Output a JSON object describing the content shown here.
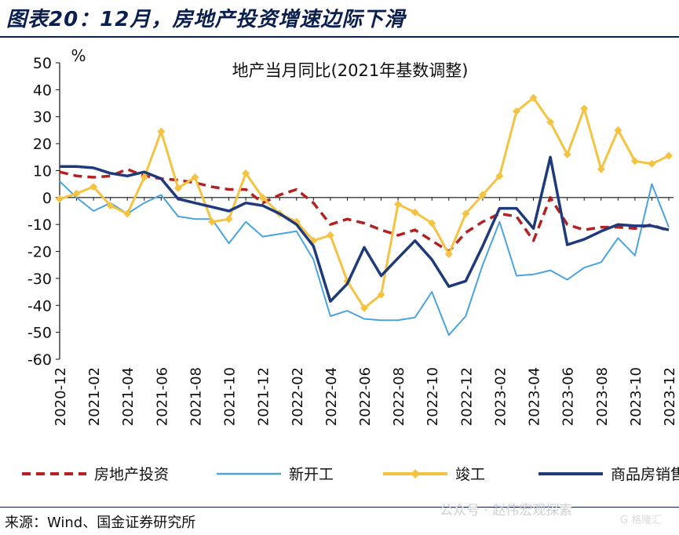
{
  "figure_title": "图表20：12月，房地产投资增速边际下滑",
  "source": "来源：Wind、国金证券研究所",
  "watermark": "公众号 · 赵伟宏观探索",
  "watermark_logo": "G 格隆汇",
  "chart_data": {
    "type": "line",
    "title": "地产当月同比(2021年基数调整)",
    "ylabel": "%",
    "ylim": [
      -60,
      50
    ],
    "yticks": [
      50,
      40,
      30,
      20,
      10,
      0,
      -10,
      -20,
      -30,
      -40,
      -50,
      -60
    ],
    "x": [
      "2020-12",
      "2021-01",
      "2021-02",
      "2021-03",
      "2021-04",
      "2021-05",
      "2021-06",
      "2021-07",
      "2021-08",
      "2021-09",
      "2021-10",
      "2021-11",
      "2021-12",
      "2022-01",
      "2022-02",
      "2022-03",
      "2022-04",
      "2022-05",
      "2022-06",
      "2022-07",
      "2022-08",
      "2022-09",
      "2022-10",
      "2022-11",
      "2022-12",
      "2023-01",
      "2023-02",
      "2023-03",
      "2023-04",
      "2023-05",
      "2023-06",
      "2023-07",
      "2023-08",
      "2023-09",
      "2023-10",
      "2023-11",
      "2023-12"
    ],
    "xtick_labels": [
      "2020-12",
      "2021-02",
      "2021-04",
      "2021-06",
      "2021-08",
      "2021-10",
      "2021-12",
      "2022-02",
      "2022-04",
      "2022-06",
      "2022-08",
      "2022-10",
      "2022-12",
      "2023-02",
      "2023-04",
      "2023-06",
      "2023-08",
      "2023-10",
      "2023-12"
    ],
    "legend_position": "bottom",
    "grid": false,
    "series": [
      {
        "name": "房地产投资",
        "color": "#b22222",
        "style": "dashed",
        "values": [
          9.5,
          8,
          7.5,
          8,
          10.5,
          8,
          7,
          6.5,
          5.5,
          4,
          3,
          3,
          -2,
          1,
          3,
          -2,
          -10,
          -8,
          -9.5,
          -12,
          -14,
          -12,
          -16,
          -20,
          -13,
          -9,
          -6,
          -7,
          -16,
          0,
          -10,
          -12,
          -11,
          -11,
          -11.5,
          -10,
          -12.5
        ]
      },
      {
        "name": "新开工",
        "color": "#4aa3df",
        "style": "solid-thin",
        "values": [
          6,
          0,
          -5,
          -2,
          -6,
          -2,
          1,
          -7,
          -8,
          -8,
          -17,
          -9,
          -14.5,
          -13.5,
          -12.5,
          -23,
          -44,
          -42,
          -45,
          -45.5,
          -45.5,
          -44.5,
          -35,
          -51,
          -44,
          -25,
          -9,
          -29,
          -28.5,
          -27,
          -30.5,
          -26,
          -24,
          -15,
          -21.5,
          5,
          -11
        ]
      },
      {
        "name": "竣工",
        "color": "#f5c342",
        "style": "solid-marker",
        "values": [
          -0.5,
          1.5,
          4,
          -3,
          -6,
          7.5,
          24.5,
          3.5,
          7.5,
          -9,
          -8,
          9,
          0,
          -6,
          -9,
          -16,
          -14,
          -31,
          -41,
          -36,
          -2.5,
          -5.5,
          -9.5,
          -21,
          -6,
          1,
          8,
          32,
          37,
          28,
          16,
          33,
          10.5,
          25,
          13.5,
          12.5,
          15.5
        ]
      },
      {
        "name": "商品房销售",
        "color": "#1f3a7a",
        "style": "solid-thick",
        "values": [
          11.5,
          11.5,
          11,
          9,
          8,
          9.5,
          7,
          -0.5,
          -2,
          -3.5,
          -5,
          -2,
          -3,
          -6,
          -10,
          -18,
          -38.5,
          -32,
          -18.5,
          -29,
          -22.5,
          -16,
          -23,
          -33,
          -31,
          -18,
          -4,
          -4,
          -11.5,
          15,
          -17.5,
          -15.5,
          -12.5,
          -10,
          -10.5,
          -10.5,
          -12
        ]
      }
    ]
  }
}
